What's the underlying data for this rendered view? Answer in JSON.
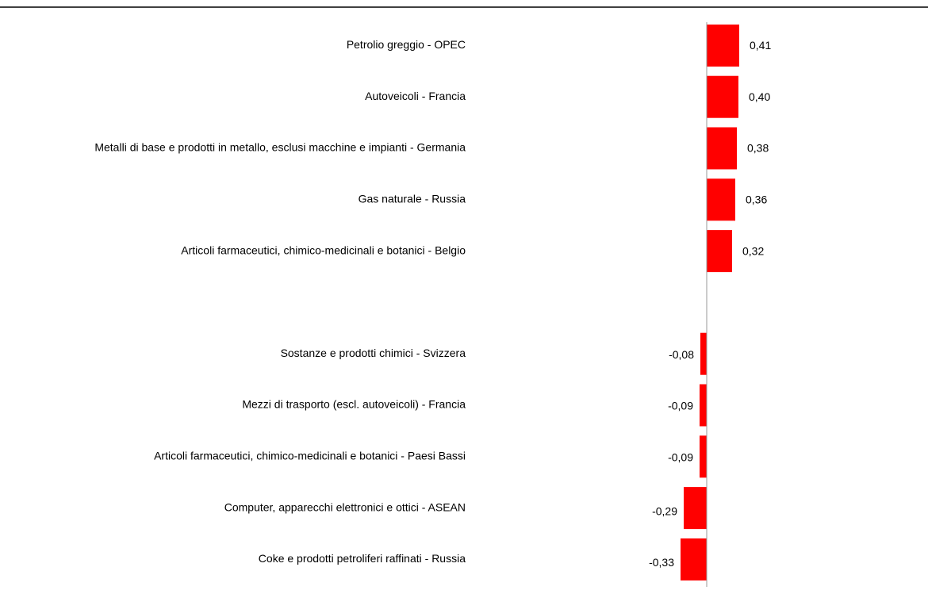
{
  "chart_data": {
    "type": "barh",
    "categories": [
      "Petrolio greggio - OPEC",
      "Autoveicoli - Francia",
      "Metalli di base e prodotti in metallo, esclusi macchine e impianti - Germania",
      "Gas naturale - Russia",
      "Articoli farmaceutici, chimico-medicinali e botanici - Belgio",
      null,
      "Sostanze e prodotti chimici - Svizzera",
      "Mezzi di trasporto (escl. autoveicoli) - Francia",
      "Articoli farmaceutici, chimico-medicinali e botanici - Paesi Bassi",
      "Computer, apparecchi elettronici e ottici - ASEAN",
      "Coke e prodotti petroliferi raffinati - Russia"
    ],
    "values": [
      0.41,
      0.4,
      0.38,
      0.36,
      0.32,
      null,
      -0.08,
      -0.09,
      -0.09,
      -0.29,
      -0.33
    ],
    "value_labels": [
      "0,41",
      "0,40",
      "0,38",
      "0,36",
      "0,32",
      null,
      "-0,08",
      "-0,09",
      "-0,09",
      "-0,29",
      "-0,33"
    ],
    "color": "#ff0000"
  }
}
